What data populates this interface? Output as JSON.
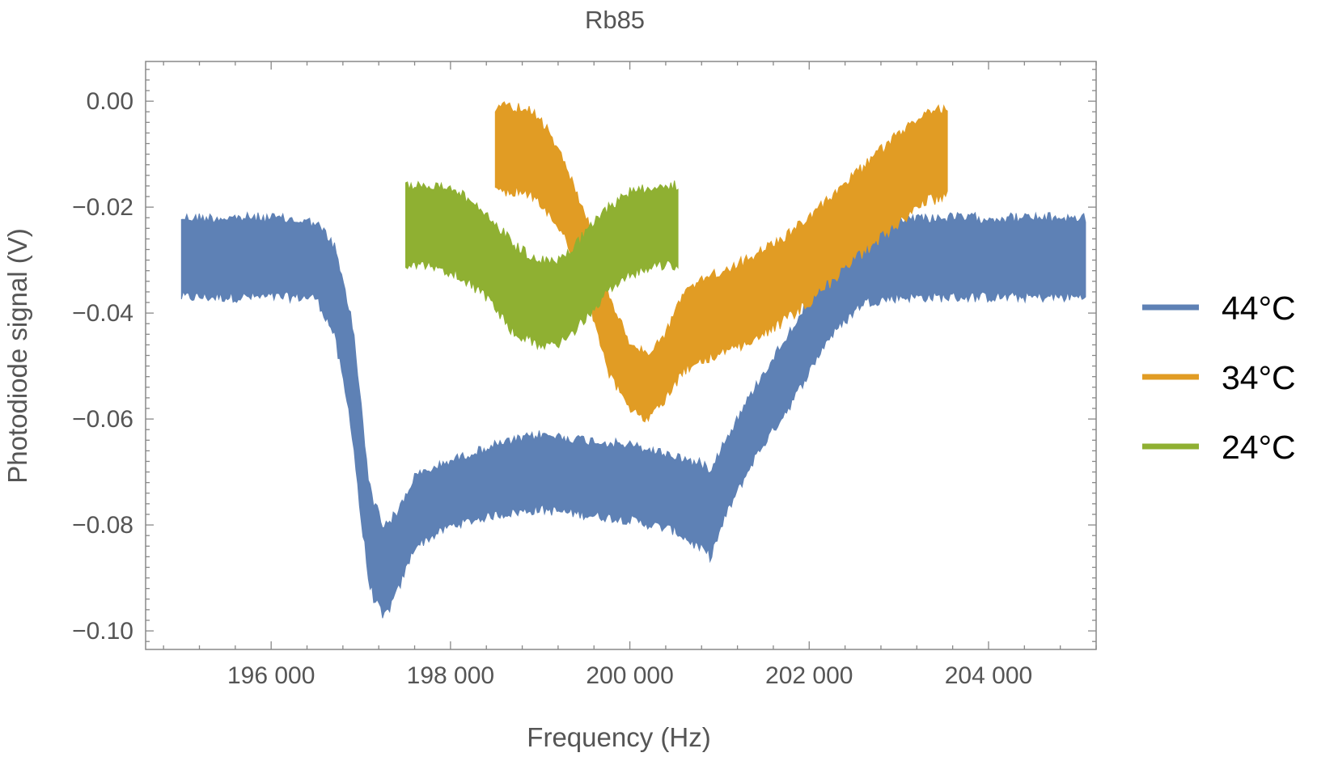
{
  "chart_data": {
    "type": "line",
    "title": "Rb85",
    "xlabel": "Frequency (Hz)",
    "ylabel": "Photodiode signal (V)",
    "xlim": [
      194600,
      205200
    ],
    "ylim": [
      -0.1035,
      0.0075
    ],
    "x_ticks": [
      196000,
      198000,
      200000,
      202000,
      204000
    ],
    "x_tick_labels": [
      "196 000",
      "198 000",
      "200 000",
      "202 000",
      "204 000"
    ],
    "y_ticks": [
      0.0,
      -0.02,
      -0.04,
      -0.06,
      -0.08,
      -0.1
    ],
    "y_tick_labels": [
      "0.00",
      "−0.02",
      "−0.04",
      "−0.06",
      "−0.08",
      "−0.10"
    ],
    "grid": false,
    "legend_position": "right",
    "series": [
      {
        "name": "44°C",
        "color": "#5E81B5",
        "x": [
          195000,
          195500,
          196000,
          196500,
          196700,
          196900,
          197000,
          197100,
          197250,
          197400,
          197600,
          198000,
          198500,
          199000,
          199500,
          200000,
          200500,
          200900,
          201100,
          201400,
          201800,
          202200,
          202600,
          203000,
          203500,
          204000,
          204500,
          205100
        ],
        "upper": [
          -0.021,
          -0.021,
          -0.021,
          -0.022,
          -0.026,
          -0.04,
          -0.055,
          -0.072,
          -0.079,
          -0.077,
          -0.07,
          -0.067,
          -0.064,
          -0.062,
          -0.063,
          -0.064,
          -0.066,
          -0.068,
          -0.062,
          -0.053,
          -0.042,
          -0.031,
          -0.022,
          -0.021,
          -0.021,
          -0.021,
          -0.021,
          -0.021
        ],
        "lower": [
          -0.038,
          -0.038,
          -0.038,
          -0.038,
          -0.045,
          -0.063,
          -0.08,
          -0.093,
          -0.099,
          -0.094,
          -0.085,
          -0.081,
          -0.079,
          -0.078,
          -0.079,
          -0.08,
          -0.082,
          -0.087,
          -0.078,
          -0.068,
          -0.058,
          -0.046,
          -0.039,
          -0.038,
          -0.038,
          -0.038,
          -0.038,
          -0.038
        ]
      },
      {
        "name": "34°C",
        "color": "#E19C24",
        "x": [
          198500,
          198800,
          199000,
          199250,
          199500,
          199750,
          200000,
          200200,
          200400,
          200600,
          200800,
          201000,
          201300,
          201600,
          202000,
          202500,
          203000,
          203300,
          203550
        ],
        "upper": [
          0.0,
          0.0,
          -0.002,
          -0.01,
          -0.02,
          -0.035,
          -0.045,
          -0.047,
          -0.043,
          -0.035,
          -0.033,
          -0.031,
          -0.029,
          -0.026,
          -0.021,
          -0.013,
          -0.005,
          -0.001,
          0.0
        ],
        "lower": [
          -0.018,
          -0.018,
          -0.02,
          -0.026,
          -0.036,
          -0.052,
          -0.059,
          -0.061,
          -0.057,
          -0.052,
          -0.05,
          -0.049,
          -0.047,
          -0.044,
          -0.039,
          -0.031,
          -0.024,
          -0.02,
          -0.019
        ]
      },
      {
        "name": "24°C",
        "color": "#8FB032",
        "x": [
          197500,
          197800,
          198100,
          198400,
          198700,
          199000,
          199200,
          199400,
          199700,
          200000,
          200300,
          200550
        ],
        "upper": [
          -0.015,
          -0.015,
          -0.016,
          -0.02,
          -0.026,
          -0.029,
          -0.029,
          -0.026,
          -0.02,
          -0.016,
          -0.015,
          -0.015
        ],
        "lower": [
          -0.032,
          -0.032,
          -0.034,
          -0.038,
          -0.045,
          -0.047,
          -0.047,
          -0.044,
          -0.038,
          -0.034,
          -0.032,
          -0.032
        ]
      }
    ]
  }
}
